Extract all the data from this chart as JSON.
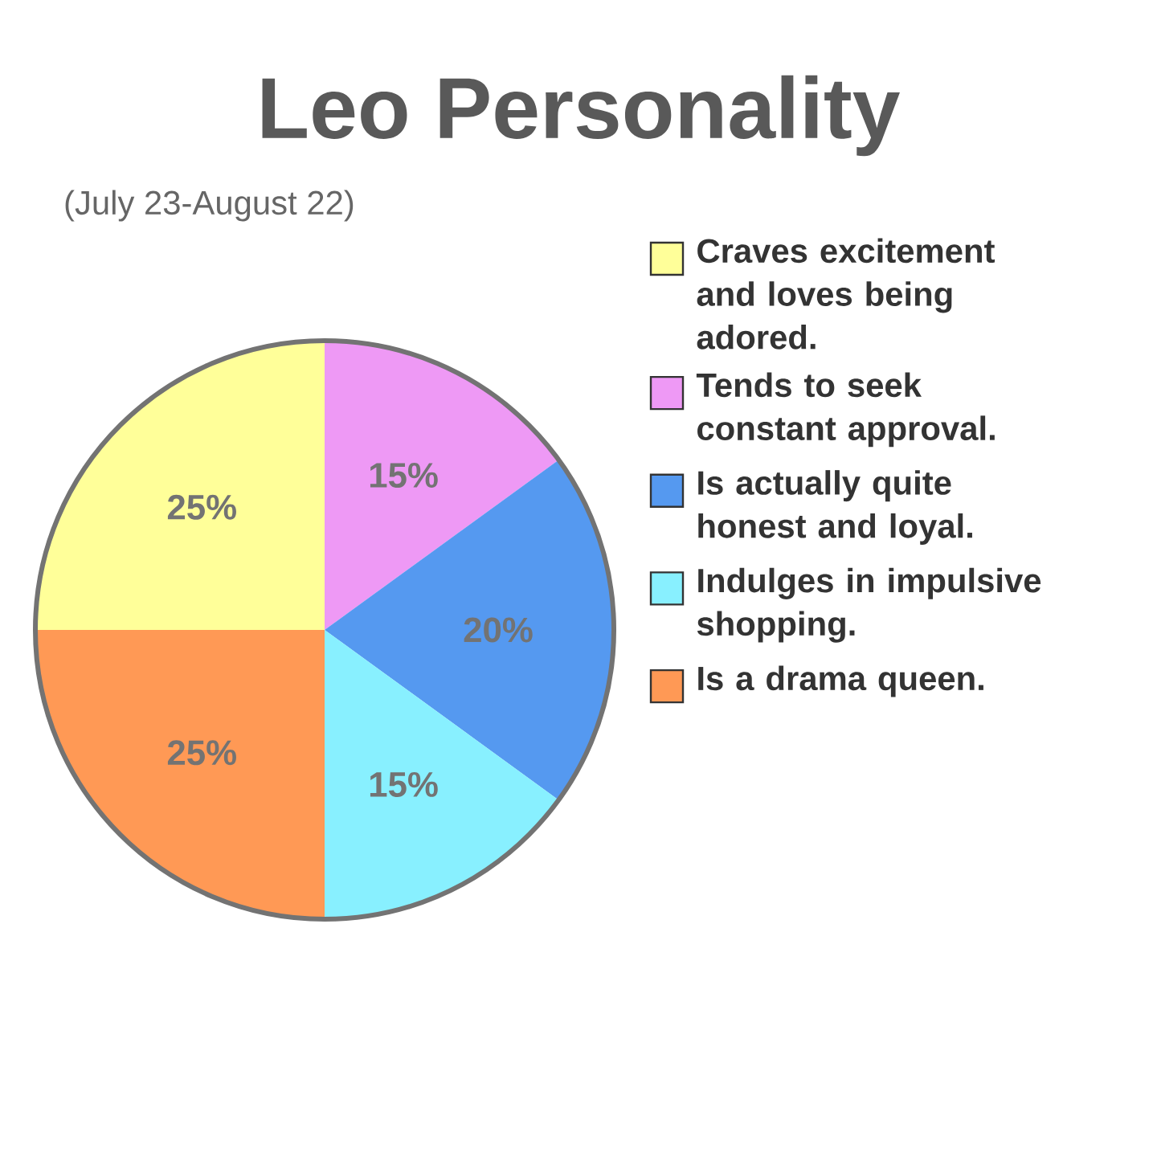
{
  "chart_data": {
    "type": "pie",
    "title": "Leo Personality",
    "subtitle": "(July 23-August 22)",
    "categories": [
      "Craves excitement and loves being adored.",
      "Tends to seek constant approval.",
      "Is actually quite honest and loyal.",
      "Indulges in impulsive shopping.",
      "Is a drama queen."
    ],
    "values": [
      25,
      15,
      20,
      15,
      25
    ],
    "colors": [
      "#ffff99",
      "#ee99f5",
      "#5599f0",
      "#88f0ff",
      "#ff9955"
    ],
    "value_labels": [
      "25%",
      "15%",
      "20%",
      "15%",
      "25%"
    ],
    "legend": "right"
  }
}
